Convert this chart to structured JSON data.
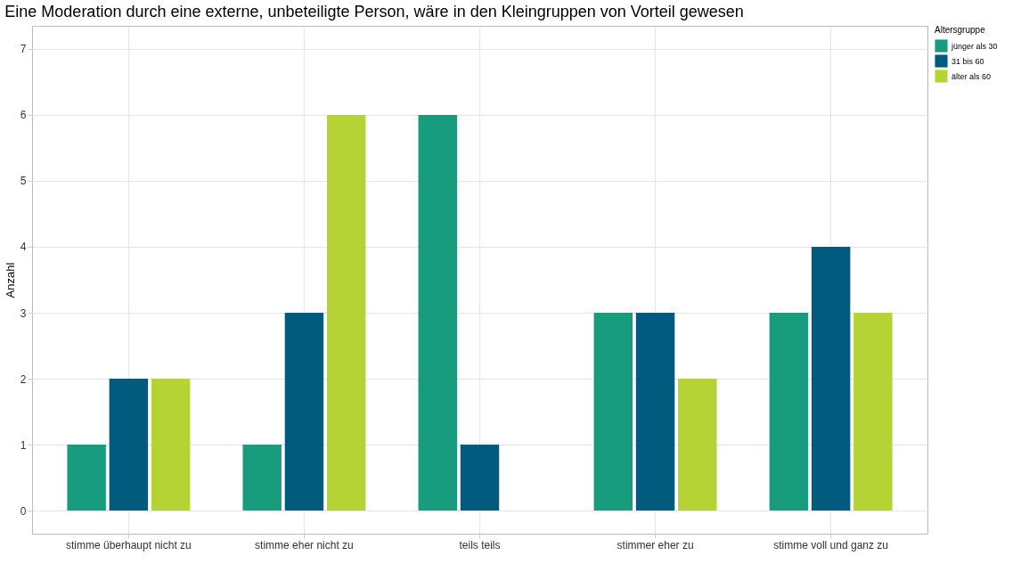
{
  "chart_data": {
    "type": "bar",
    "title": "Eine Moderation durch eine externe, unbeteiligte Person, wäre in den Kleingruppen von Vorteil gewesen",
    "ylabel": "Anzahl",
    "legend_title": "Altersgruppe",
    "categories": [
      "stimme überhaupt nicht zu",
      "stimme eher nicht zu",
      "teils teils",
      "stimmer eher zu",
      "stimme voll und ganz zu"
    ],
    "series": [
      {
        "name": "jünger als 30",
        "color": "#179c7d",
        "values": [
          1,
          1,
          6,
          3,
          3
        ]
      },
      {
        "name": "31 bis 60",
        "color": "#005b7f",
        "values": [
          2,
          3,
          1,
          3,
          4
        ]
      },
      {
        "name": "älter als 60",
        "color": "#b5d334",
        "values": [
          2,
          6,
          null,
          2,
          3
        ]
      }
    ],
    "ylim": [
      -0.35,
      7.35
    ],
    "yticks": [
      0,
      1,
      2,
      3,
      4,
      5,
      6,
      7
    ],
    "grid": true,
    "legend": "right"
  }
}
